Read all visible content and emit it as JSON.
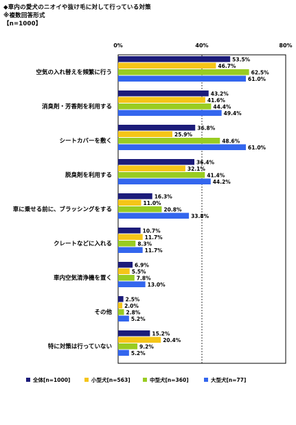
{
  "header": {
    "title": "◆車内の愛犬のニオイや抜け毛に対して行っている対策",
    "subtitle": "※複数回答形式",
    "sample": "【n=1000】"
  },
  "chart_data": {
    "type": "bar",
    "orientation": "horizontal",
    "xlim": [
      0,
      80
    ],
    "xticks": [
      "0%",
      "40%",
      "80%"
    ],
    "xtick_values": [
      0,
      40,
      80
    ],
    "value_suffix": "%",
    "grid": "dashed at 40%",
    "legend_position": "bottom",
    "categories": [
      "空気の入れ替えを頻繁に行う",
      "消臭剤・芳香剤を利用する",
      "シートカバーを敷く",
      "脱臭剤を利用する",
      "車に乗せる前に、ブラッシングをする",
      "クレートなどに入れる",
      "車内空気清浄機を置く",
      "その他",
      "特に対策は行っていない"
    ],
    "series": [
      {
        "name": "全体[n=1000]",
        "color": "#1c1c7a",
        "values": [
          53.5,
          43.2,
          36.8,
          36.4,
          16.3,
          10.7,
          6.9,
          2.5,
          15.2
        ]
      },
      {
        "name": "小型犬[n=563]",
        "color": "#f5c518",
        "values": [
          46.7,
          41.6,
          25.9,
          32.1,
          11.0,
          11.7,
          5.5,
          2.0,
          20.4
        ]
      },
      {
        "name": "中型犬[n=360]",
        "color": "#99cc22",
        "values": [
          62.5,
          44.4,
          48.6,
          41.4,
          20.8,
          8.3,
          7.8,
          2.8,
          9.2
        ]
      },
      {
        "name": "大型犬[n=77]",
        "color": "#3366ee",
        "values": [
          61.0,
          49.4,
          61.0,
          44.2,
          33.8,
          11.7,
          13.0,
          5.2,
          5.2
        ]
      }
    ]
  }
}
